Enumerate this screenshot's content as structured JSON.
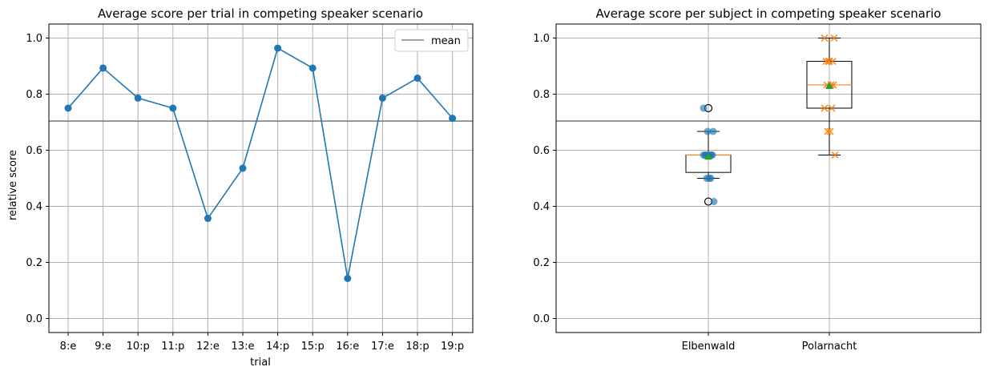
{
  "chart_data": [
    {
      "type": "line",
      "title": "Average score per trial in competing speaker scenario",
      "xlabel": "trial",
      "ylabel": "relative score",
      "categories": [
        "8:e",
        "9:e",
        "10:p",
        "11:p",
        "12:e",
        "13:e",
        "14:p",
        "15:p",
        "16:e",
        "17:e",
        "18:p",
        "19:p"
      ],
      "series": [
        {
          "values": [
            0.75,
            0.893,
            0.786,
            0.75,
            0.357,
            0.536,
            0.964,
            0.893,
            0.143,
            0.786,
            0.857,
            0.714
          ],
          "color": "#1f77b4"
        }
      ],
      "mean_line": {
        "name": "mean",
        "value": 0.704,
        "color": "#808080"
      },
      "legend": {
        "entries": [
          "mean"
        ],
        "placement": "top-right"
      },
      "ylim": [
        -0.05,
        1.05
      ],
      "yticks": [
        "0.0",
        "0.2",
        "0.4",
        "0.6",
        "0.8",
        "1.0"
      ],
      "grid": true
    },
    {
      "type": "box",
      "title": "Average score per subject in competing speaker scenario",
      "xlabel": "",
      "ylabel": "",
      "categories": [
        "Elbenwald",
        "Polarnacht"
      ],
      "boxes": [
        {
          "name": "Elbenwald",
          "q1": 0.521,
          "median": 0.583,
          "q3": 0.583,
          "whisker_low": 0.5,
          "whisker_high": 0.667,
          "mean": 0.578,
          "outliers": [
            0.75,
            0.417
          ]
        },
        {
          "name": "Polarnacht",
          "q1": 0.75,
          "median": 0.833,
          "q3": 0.917,
          "whisker_low": 0.583,
          "whisker_high": 1.0,
          "mean": 0.83,
          "outliers": []
        }
      ],
      "points": [
        {
          "category": "Elbenwald",
          "marker": "circle",
          "color": "#1f77b4",
          "values": [
            0.75,
            0.667,
            0.667,
            0.583,
            0.583,
            0.583,
            0.583,
            0.583,
            0.583,
            0.583,
            0.5,
            0.5,
            0.5,
            0.417
          ]
        },
        {
          "category": "Polarnacht",
          "marker": "x",
          "color": "#ff7f0e",
          "values": [
            1.0,
            1.0,
            0.917,
            0.917,
            0.917,
            0.917,
            0.833,
            0.833,
            0.833,
            0.75,
            0.75,
            0.667,
            0.667,
            0.583
          ]
        }
      ],
      "mean_line": {
        "value": 0.704,
        "color": "#808080"
      },
      "mean_marker_color": "#2ca02c",
      "median_color": "#ff7f0e",
      "ylim": [
        -0.05,
        1.05
      ],
      "yticks": [
        "0.0",
        "0.2",
        "0.4",
        "0.6",
        "0.8",
        "1.0"
      ],
      "grid": true
    }
  ]
}
